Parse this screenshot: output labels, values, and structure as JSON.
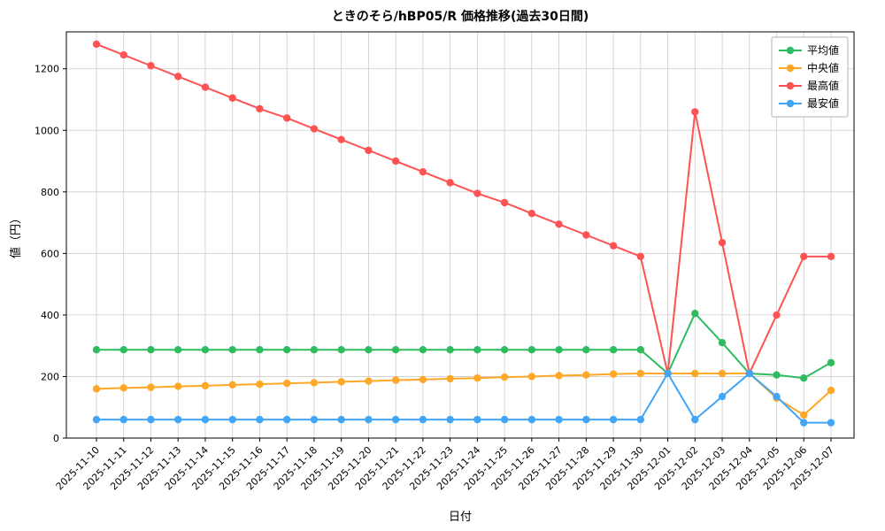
{
  "chart_data": {
    "type": "line",
    "title": "ときのそら/hBP05/R 価格推移(過去30日間)",
    "xlabel": "日付",
    "ylabel": "値（円）",
    "grid": true,
    "legend_position": "top-right",
    "ylim": [
      0,
      1320
    ],
    "yticks": [
      0,
      200,
      400,
      600,
      800,
      1000,
      1200
    ],
    "x": [
      "2025-11-10",
      "2025-11-11",
      "2025-11-12",
      "2025-11-13",
      "2025-11-14",
      "2025-11-15",
      "2025-11-16",
      "2025-11-17",
      "2025-11-18",
      "2025-11-19",
      "2025-11-20",
      "2025-11-21",
      "2025-11-22",
      "2025-11-23",
      "2025-11-24",
      "2025-11-25",
      "2025-11-26",
      "2025-11-27",
      "2025-11-28",
      "2025-11-29",
      "2025-11-30",
      "2025-12-01",
      "2025-12-02",
      "2025-12-03",
      "2025-12-04",
      "2025-12-05",
      "2025-12-06",
      "2025-12-07"
    ],
    "series": [
      {
        "name": "平均値",
        "color": "#2ebc5f",
        "values": [
          287,
          287,
          287,
          287,
          287,
          287,
          287,
          287,
          287,
          287,
          287,
          287,
          287,
          287,
          287,
          287,
          287,
          287,
          287,
          287,
          287,
          210,
          405,
          310,
          210,
          205,
          195,
          245
        ]
      },
      {
        "name": "中央値",
        "color": "#ffa726",
        "values": [
          160,
          163,
          165,
          168,
          170,
          173,
          175,
          178,
          180,
          183,
          185,
          188,
          190,
          193,
          195,
          198,
          200,
          203,
          205,
          208,
          210,
          210,
          210,
          210,
          210,
          130,
          75,
          155
        ]
      },
      {
        "name": "最高値",
        "color": "#ff5252",
        "values": [
          1280,
          1245,
          1210,
          1175,
          1140,
          1105,
          1070,
          1040,
          1005,
          970,
          935,
          900,
          865,
          830,
          795,
          765,
          730,
          695,
          660,
          625,
          590,
          210,
          1060,
          635,
          210,
          400,
          590,
          590
        ]
      },
      {
        "name": "最安値",
        "color": "#42a5f5",
        "values": [
          60,
          60,
          60,
          60,
          60,
          60,
          60,
          60,
          60,
          60,
          60,
          60,
          60,
          60,
          60,
          60,
          60,
          60,
          60,
          60,
          60,
          210,
          60,
          135,
          210,
          135,
          50,
          50
        ]
      }
    ]
  }
}
